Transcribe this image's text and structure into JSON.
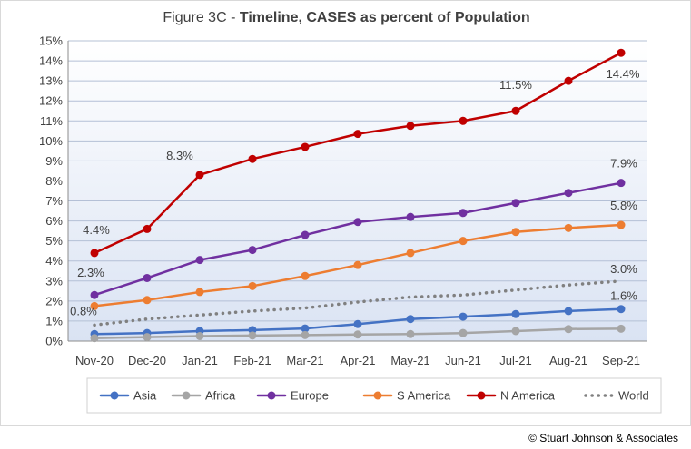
{
  "title": {
    "prefix": "Figure 3C - ",
    "main": "Timeline, CASES as percent of Population"
  },
  "copyright": "© Stuart Johnson & Associates",
  "chart_data": {
    "type": "line",
    "title": "Figure 3C - Timeline, CASES as percent of Population",
    "xlabel": "",
    "ylabel": "",
    "ylim": [
      0,
      15
    ],
    "yticks": [
      0,
      1,
      2,
      3,
      4,
      5,
      6,
      7,
      8,
      9,
      10,
      11,
      12,
      13,
      14,
      15
    ],
    "ytick_labels": [
      "0%",
      "1%",
      "2%",
      "3%",
      "4%",
      "5%",
      "6%",
      "7%",
      "8%",
      "9%",
      "10%",
      "11%",
      "12%",
      "13%",
      "14%",
      "15%"
    ],
    "grid": true,
    "legend_position": "bottom",
    "categories": [
      "Nov-20",
      "Dec-20",
      "Jan-21",
      "Feb-21",
      "Mar-21",
      "Apr-21",
      "May-21",
      "Jun-21",
      "Jul-21",
      "Aug-21",
      "Sep-21"
    ],
    "series": [
      {
        "name": "Asia",
        "color": "#4472c4",
        "style": "solid",
        "values": [
          0.35,
          0.4,
          0.5,
          0.55,
          0.63,
          0.85,
          1.1,
          1.22,
          1.35,
          1.5,
          1.6
        ]
      },
      {
        "name": "Africa",
        "color": "#a5a5a5",
        "style": "solid",
        "values": [
          0.15,
          0.2,
          0.25,
          0.28,
          0.3,
          0.33,
          0.35,
          0.4,
          0.5,
          0.6,
          0.62
        ]
      },
      {
        "name": "Europe",
        "color": "#7030a0",
        "style": "solid",
        "values": [
          2.3,
          3.15,
          4.05,
          4.55,
          5.3,
          5.95,
          6.2,
          6.4,
          6.9,
          7.4,
          7.9
        ]
      },
      {
        "name": "S America",
        "color": "#ed7d31",
        "style": "solid",
        "values": [
          1.75,
          2.05,
          2.45,
          2.75,
          3.25,
          3.8,
          4.4,
          5.0,
          5.45,
          5.65,
          5.8
        ]
      },
      {
        "name": "N America",
        "color": "#c00000",
        "style": "solid",
        "values": [
          4.4,
          5.6,
          8.3,
          9.1,
          9.7,
          10.35,
          10.75,
          11.0,
          11.5,
          13.0,
          14.4
        ]
      },
      {
        "name": "World",
        "color": "#808080",
        "style": "dotted",
        "values": [
          0.8,
          1.1,
          1.3,
          1.5,
          1.65,
          1.95,
          2.2,
          2.3,
          2.55,
          2.8,
          3.0
        ]
      }
    ],
    "annotations": [
      {
        "series": "N America",
        "index": 0,
        "text": "4.4%"
      },
      {
        "series": "N America",
        "index": 2,
        "text": "8.3%"
      },
      {
        "series": "N America",
        "index": 8,
        "text": "11.5%"
      },
      {
        "series": "N America",
        "index": 10,
        "text": "14.4%"
      },
      {
        "series": "Europe",
        "index": 0,
        "text": "2.3%"
      },
      {
        "series": "Europe",
        "index": 10,
        "text": "7.9%"
      },
      {
        "series": "S America",
        "index": 10,
        "text": "5.8%"
      },
      {
        "series": "World",
        "index": 0,
        "text": "0.8%"
      },
      {
        "series": "World",
        "index": 10,
        "text": "3.0%"
      },
      {
        "series": "Asia",
        "index": 10,
        "text": "1.6%"
      }
    ]
  }
}
